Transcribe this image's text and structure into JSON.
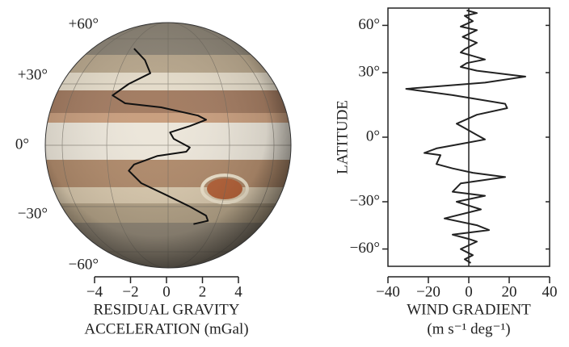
{
  "chart_data": [
    {
      "type": "line",
      "scale": "sine-latitude",
      "xlabel": [
        "RESIDUAL GRAVITY",
        "ACCELERATION (mGal)"
      ],
      "xlim": [
        -4,
        4
      ],
      "xticks": [
        {
          "value": -4,
          "label": "−4"
        },
        {
          "value": -2,
          "label": "−2"
        },
        0,
        2,
        4
      ],
      "ylim": [
        -90,
        90
      ],
      "yticks": [
        {
          "value": 60,
          "label": "+60°"
        },
        {
          "value": 30,
          "label": "+30°"
        },
        {
          "value": 0,
          "label": "0°"
        },
        {
          "value": -30,
          "label": "−30°"
        },
        {
          "value": -60,
          "label": "−60°"
        }
      ],
      "color": "#111",
      "y": [
        52,
        44,
        36,
        30,
        24,
        20,
        18,
        14,
        12,
        9,
        6,
        3,
        -1,
        -3,
        -5,
        -9,
        -12,
        -18,
        -24,
        -30,
        -35,
        -38,
        -40
      ],
      "values": [
        -1.8,
        -1.2,
        -0.9,
        -2.1,
        -3.0,
        -2.3,
        -0.3,
        1.75,
        2.2,
        1.3,
        0.2,
        0.4,
        1.3,
        1.1,
        -0.5,
        -1.8,
        -2.1,
        -1.4,
        0,
        1.3,
        2.2,
        2.3,
        1.5
      ]
    },
    {
      "type": "line",
      "scale": "sine-latitude",
      "xlabel": [
        "WIND GRADIENT",
        "(m s⁻¹ deg⁻¹)"
      ],
      "ylabel": "LATITUDE",
      "xlim": [
        -40,
        40
      ],
      "xticks": [
        {
          "value": -40,
          "label": "−40"
        },
        {
          "value": -20,
          "label": "−20"
        },
        0,
        20,
        40
      ],
      "ylim": [
        -90,
        90
      ],
      "yticks": [
        {
          "value": 60,
          "label": "60°"
        },
        {
          "value": 30,
          "label": "30°"
        },
        {
          "value": 0,
          "label": "0°"
        },
        {
          "value": -30,
          "label": "−30°"
        },
        {
          "value": -60,
          "label": "−60°"
        }
      ],
      "color": "#222",
      "y": [
        79,
        74,
        70,
        64,
        59,
        56,
        51,
        47,
        43,
        41,
        39,
        37,
        35,
        33,
        31,
        28,
        25,
        22,
        19,
        15,
        13,
        10,
        6,
        4,
        1,
        -1,
        -3,
        -5,
        -7,
        -8,
        -12,
        -14,
        -16,
        -18,
        -21,
        -25,
        -27,
        -30,
        -34,
        -39,
        -43,
        -46,
        -49,
        -52,
        -54,
        -60,
        -66,
        -71,
        -77
      ],
      "values": [
        -1,
        4,
        -2,
        2,
        -4,
        4,
        -3,
        4,
        -2,
        -4,
        2,
        8,
        -1,
        -4,
        4,
        28,
        8,
        -31,
        -8,
        18,
        19,
        4,
        -6,
        -2,
        4,
        8,
        -4,
        -16,
        -22,
        -14,
        -16,
        -8,
        2,
        18,
        -4,
        -8,
        8,
        -6,
        6,
        -12,
        4,
        10,
        -8,
        0,
        4,
        -4,
        2,
        -2,
        1
      ]
    }
  ]
}
